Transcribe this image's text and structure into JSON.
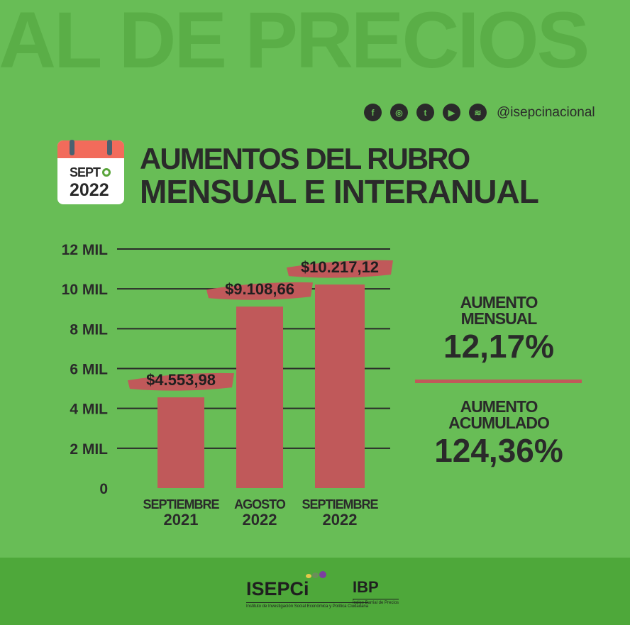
{
  "watermark": "IAL DE PRECIOS",
  "social": {
    "icons": [
      "facebook-icon",
      "instagram-icon",
      "twitter-icon",
      "youtube-icon",
      "spotify-icon"
    ],
    "glyphs": [
      "f",
      "◎",
      "t",
      "▶",
      "≋"
    ],
    "handle": "@isepcinacional"
  },
  "calendar": {
    "month": "SEPT",
    "year": "2022"
  },
  "title": {
    "line1": "AUMENTOS DEL RUBRO",
    "line2": "MENSUAL E INTERANUAL"
  },
  "stats": {
    "monthly_label1": "AUMENTO",
    "monthly_label2": "MENSUAL",
    "monthly_value": "12,17%",
    "acc_label1": "AUMENTO",
    "acc_label2": "ACUMULADO",
    "acc_value": "124,36%"
  },
  "footer": {
    "logo1": "ISEPCi",
    "logo1_sub": "Instituto de Investigación Social Económica y Política Ciudadana",
    "logo2": "IBP",
    "logo2_sub": "Índice Barrial de Precios"
  },
  "colors": {
    "bar": "#c0595a",
    "bg": "#68bd56"
  },
  "chart_data": {
    "type": "bar",
    "categories": [
      [
        "SEPTIEMBRE",
        "2021"
      ],
      [
        "AGOSTO",
        "2022"
      ],
      [
        "SEPTIEMBRE",
        "2022"
      ]
    ],
    "values": [
      4553.98,
      9108.66,
      10217.12
    ],
    "data_labels": [
      "$4.553,98",
      "$9.108,66",
      "$10.217,12"
    ],
    "yticks": [
      0,
      2000,
      4000,
      6000,
      8000,
      10000,
      12000
    ],
    "ytick_labels": [
      "0",
      "2 MIL",
      "4 MIL",
      "6 MIL",
      "8 MIL",
      "10 MIL",
      "12 MIL"
    ],
    "ylim": [
      0,
      12000
    ],
    "grid": true
  }
}
